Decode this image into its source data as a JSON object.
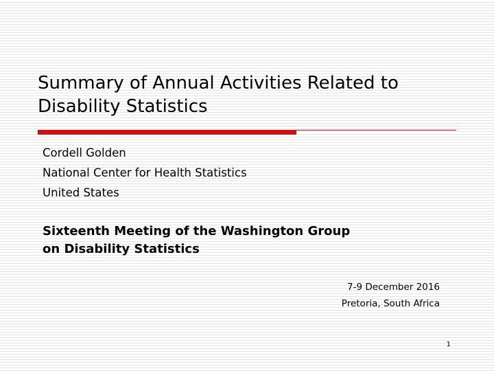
{
  "slide": {
    "title_lines": [
      "Summary of Annual Activities Related to",
      "Disability Statistics"
    ],
    "author": {
      "name": "Cordell Golden",
      "organization": "National Center for Health Statistics",
      "country": "United States"
    },
    "meeting_lines": [
      "Sixteenth Meeting of the Washington Group",
      "on Disability Statistics"
    ],
    "date": "7-9 December 2016",
    "location": "Pretoria, South Africa",
    "page_number": "1"
  },
  "colors": {
    "accent_rule": "#cc1111",
    "background_stripe": "#e4e4e4"
  }
}
